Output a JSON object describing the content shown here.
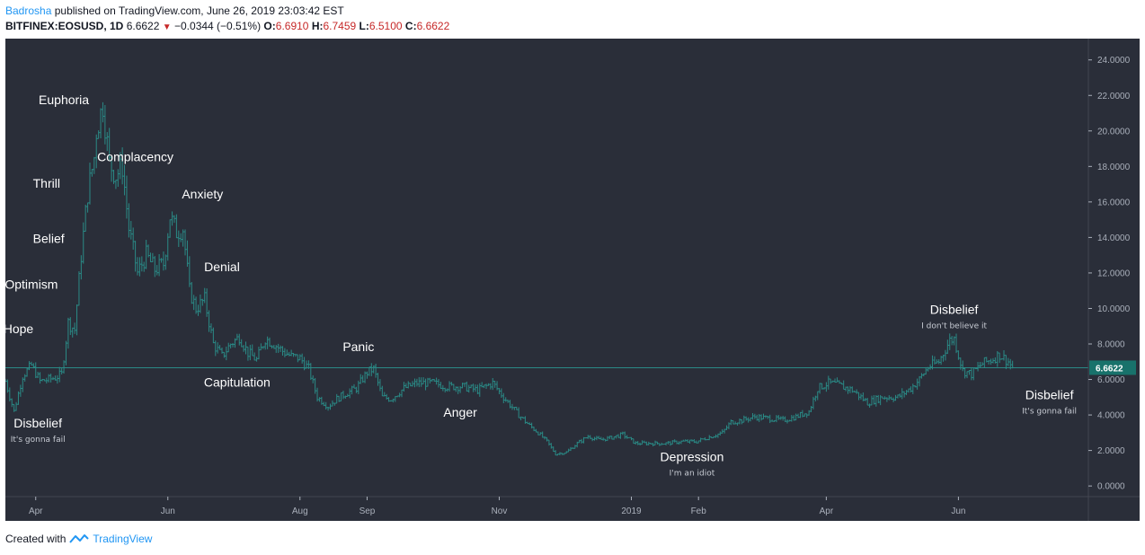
{
  "header": {
    "author": "Badrosha",
    "published": "published on TradingView.com, June 26, 2019 23:03:42 EST",
    "symbol": "BITFINEX:EOSUSD, 1D",
    "last": "6.6622",
    "change": "−0.0344 (−0.51%)",
    "o_label": "O:",
    "o_value": "6.6910",
    "h_label": "H:",
    "h_value": "6.7459",
    "l_label": "L:",
    "l_value": "6.5100",
    "c_label": "C:",
    "c_value": "6.6622"
  },
  "footer": {
    "created_with": "Created with",
    "brand": "TradingView"
  },
  "colors": {
    "background": "#2a2e39",
    "bars": "#2a8a86",
    "price_line": "#2a8a86",
    "price_badge": "#18726b",
    "text": "#ffffff"
  },
  "chart_data": {
    "type": "line",
    "title": "",
    "xlabel": "",
    "ylabel": "",
    "ylim": [
      -0.6,
      25.2
    ],
    "x_range": [
      "2018-03-18",
      "2019-07-31"
    ],
    "y_ticks": [
      "24.0000",
      "22.0000",
      "20.0000",
      "18.0000",
      "16.0000",
      "14.0000",
      "12.0000",
      "10.0000",
      "8.0000",
      "6.0000",
      "4.0000",
      "2.0000",
      "0.0000"
    ],
    "y_tick_values": [
      24,
      22,
      20,
      18,
      16,
      14,
      12,
      10,
      8,
      6,
      4,
      2,
      0
    ],
    "x_ticks": [
      "Apr",
      "Jun",
      "Aug",
      "Sep",
      "Nov",
      "2019",
      "Feb",
      "Apr",
      "Jun"
    ],
    "x_tick_dates": [
      "2018-04-01",
      "2018-06-01",
      "2018-08-01",
      "2018-09-01",
      "2018-11-01",
      "2019-01-01",
      "2019-02-01",
      "2019-04-01",
      "2019-06-01"
    ],
    "current_price": 6.6622,
    "current_price_label": "6.6622",
    "series": [
      {
        "x": [
          "2018-03-18",
          "2018-03-22",
          "2018-03-26",
          "2018-03-30",
          "2018-04-03",
          "2018-04-07",
          "2018-04-10",
          "2018-04-13",
          "2018-04-16",
          "2018-04-19",
          "2018-04-22",
          "2018-04-25",
          "2018-04-28",
          "2018-04-29",
          "2018-05-02",
          "2018-05-05",
          "2018-05-08",
          "2018-05-11",
          "2018-05-14",
          "2018-05-18",
          "2018-05-22",
          "2018-05-26",
          "2018-05-30",
          "2018-06-02",
          "2018-06-05",
          "2018-06-08",
          "2018-06-11",
          "2018-06-14",
          "2018-06-18",
          "2018-06-22",
          "2018-06-26",
          "2018-06-30",
          "2018-07-04",
          "2018-07-08",
          "2018-07-12",
          "2018-07-16",
          "2018-07-20",
          "2018-07-24",
          "2018-07-28",
          "2018-08-01",
          "2018-08-05",
          "2018-08-09",
          "2018-08-14",
          "2018-08-18",
          "2018-08-22",
          "2018-08-27",
          "2018-09-01",
          "2018-09-04",
          "2018-09-08",
          "2018-09-12",
          "2018-09-18",
          "2018-09-24",
          "2018-10-01",
          "2018-10-08",
          "2018-10-15",
          "2018-10-22",
          "2018-10-29",
          "2018-11-03",
          "2018-11-10",
          "2018-11-15",
          "2018-11-19",
          "2018-11-23",
          "2018-11-27",
          "2018-12-02",
          "2018-12-07",
          "2018-12-12",
          "2018-12-17",
          "2018-12-22",
          "2018-12-28",
          "2019-01-03",
          "2019-01-10",
          "2019-01-17",
          "2019-01-24",
          "2019-01-31",
          "2019-02-07",
          "2019-02-12",
          "2019-02-16",
          "2019-02-21",
          "2019-02-27",
          "2019-03-06",
          "2019-03-12",
          "2019-03-18",
          "2019-03-24",
          "2019-03-28",
          "2019-04-02",
          "2019-04-06",
          "2019-04-13",
          "2019-04-20",
          "2019-04-27",
          "2019-05-04",
          "2019-05-10",
          "2019-05-14",
          "2019-05-18",
          "2019-05-23",
          "2019-05-28",
          "2019-05-30",
          "2019-06-03",
          "2019-06-07",
          "2019-06-12",
          "2019-06-16",
          "2019-06-20",
          "2019-06-24",
          "2019-06-26"
        ],
        "values": [
          5.9,
          4.2,
          6.2,
          6.8,
          5.9,
          6.0,
          6.1,
          6.3,
          9.2,
          8.8,
          13.0,
          16.5,
          18.5,
          20.0,
          21.5,
          18.2,
          17.5,
          18.0,
          14.5,
          12.0,
          13.0,
          12.2,
          12.5,
          15.2,
          14.3,
          14.5,
          11.0,
          10.0,
          10.5,
          8.0,
          7.3,
          8.0,
          8.4,
          7.5,
          7.1,
          8.3,
          8.0,
          7.6,
          7.3,
          7.2,
          6.6,
          5.0,
          4.5,
          4.9,
          5.2,
          5.5,
          6.4,
          6.6,
          5.0,
          4.9,
          5.5,
          5.8,
          5.8,
          5.6,
          5.6,
          5.4,
          5.8,
          5.0,
          4.0,
          3.4,
          3.0,
          2.5,
          1.8,
          1.9,
          2.4,
          2.8,
          2.6,
          2.7,
          2.9,
          2.4,
          2.4,
          2.4,
          2.5,
          2.5,
          2.8,
          3.0,
          3.6,
          3.7,
          3.9,
          3.8,
          3.7,
          3.9,
          4.2,
          5.5,
          5.8,
          5.7,
          5.4,
          4.7,
          5.0,
          5.0,
          5.5,
          6.0,
          6.7,
          7.0,
          8.2,
          8.3,
          6.5,
          6.3,
          6.9,
          7.1,
          7.4,
          7.0,
          6.6622
        ]
      }
    ],
    "annotations": [
      {
        "label": "Euphoria",
        "date": "2018-04-14",
        "y": 21.5
      },
      {
        "label": "Complacency",
        "date": "2018-05-17",
        "y": 18.3
      },
      {
        "label": "Thrill",
        "date": "2018-04-06",
        "y": 16.8
      },
      {
        "label": "Anxiety",
        "date": "2018-06-17",
        "y": 16.2
      },
      {
        "label": "Belief",
        "date": "2018-04-07",
        "y": 13.7
      },
      {
        "label": "Denial",
        "date": "2018-06-26",
        "y": 12.1
      },
      {
        "label": "Optimism",
        "date": "2018-03-30",
        "y": 11.1
      },
      {
        "label": "Hope",
        "date": "2018-03-24",
        "y": 8.6
      },
      {
        "label": "Panic",
        "date": "2018-08-28",
        "y": 7.6
      },
      {
        "label": "Capitulation",
        "date": "2018-07-03",
        "y": 5.6
      },
      {
        "label": "Anger",
        "date": "2018-10-14",
        "y": 3.9
      },
      {
        "label": "Depression",
        "date": "2019-01-29",
        "y": 1.4,
        "sub": "I'm an idiot"
      },
      {
        "label": "Disbelief",
        "date": "2018-04-02",
        "y": 3.3,
        "sub": "It's gonna fail"
      },
      {
        "label": "Disbelief",
        "date": "2019-05-30",
        "y": 9.7,
        "sub": "I don't believe it"
      },
      {
        "label": "Disbelief",
        "date": "2019-07-13",
        "y": 4.9,
        "sub": "It's gonna fail"
      }
    ]
  }
}
